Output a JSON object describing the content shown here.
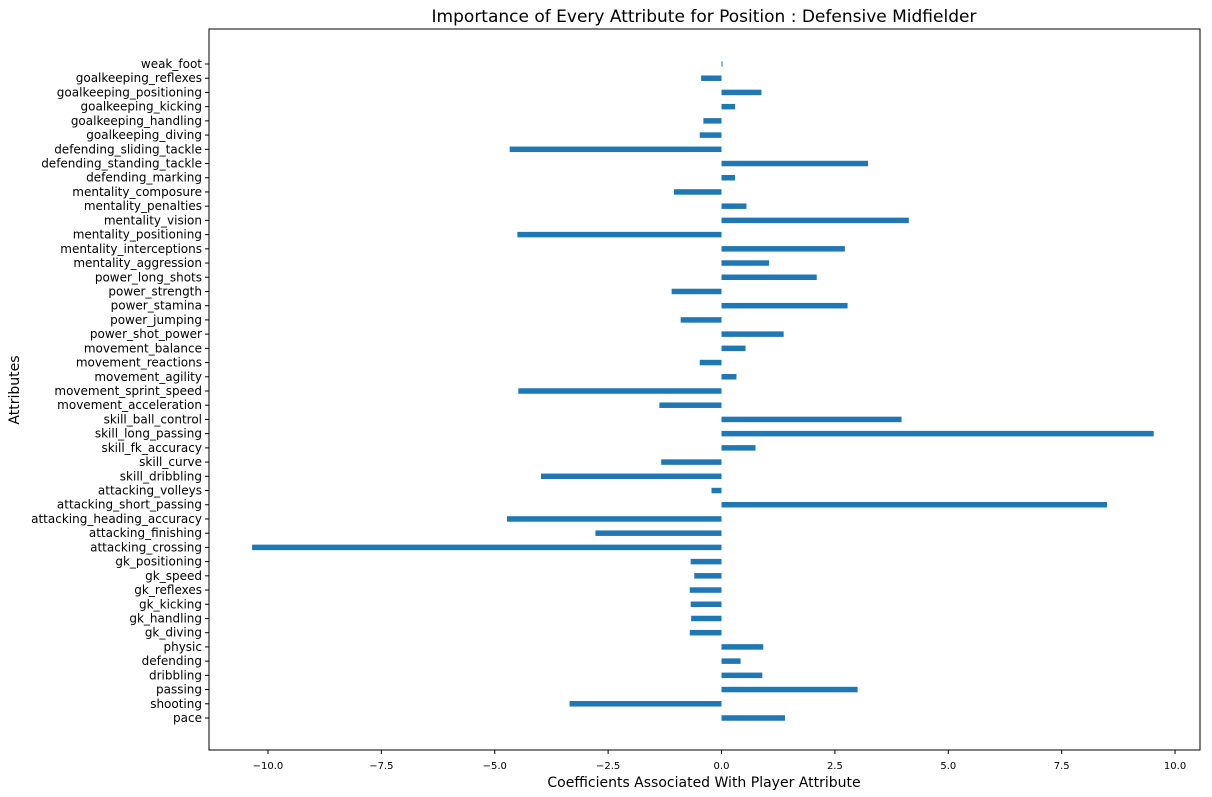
{
  "chart_data": {
    "type": "bar",
    "orientation": "horizontal",
    "title": "Importance of Every Attribute for Position : Defensive Midfielder",
    "xlabel": "Coefficients Associated With Player Attribute",
    "ylabel": "Attributes",
    "xlim": [
      -11.3,
      10.55
    ],
    "xticks": [
      -10.0,
      -7.5,
      -5.0,
      -2.5,
      0.0,
      2.5,
      5.0,
      7.5,
      10.0
    ],
    "xtick_labels": [
      "−10.0",
      "−7.5",
      "−5.0",
      "−2.5",
      "0.0",
      "2.5",
      "5.0",
      "7.5",
      "10.0"
    ],
    "grid": false,
    "bar_color": "#1f77b4",
    "categories": [
      "pace",
      "shooting",
      "passing",
      "dribbling",
      "defending",
      "physic",
      "gk_diving",
      "gk_handling",
      "gk_kicking",
      "gk_reflexes",
      "gk_speed",
      "gk_positioning",
      "attacking_crossing",
      "attacking_finishing",
      "attacking_heading_accuracy",
      "attacking_short_passing",
      "attacking_volleys",
      "skill_dribbling",
      "skill_curve",
      "skill_fk_accuracy",
      "skill_long_passing",
      "skill_ball_control",
      "movement_acceleration",
      "movement_sprint_speed",
      "movement_agility",
      "movement_reactions",
      "movement_balance",
      "power_shot_power",
      "power_jumping",
      "power_stamina",
      "power_strength",
      "power_long_shots",
      "mentality_aggression",
      "mentality_interceptions",
      "mentality_positioning",
      "mentality_vision",
      "mentality_penalties",
      "mentality_composure",
      "defending_marking",
      "defending_standing_tackle",
      "defending_sliding_tackle",
      "goalkeeping_diving",
      "goalkeeping_handling",
      "goalkeeping_kicking",
      "goalkeeping_positioning",
      "goalkeeping_reflexes",
      "weak_foot"
    ],
    "values": [
      1.4,
      -3.35,
      3.0,
      0.9,
      0.42,
      0.92,
      -0.7,
      -0.67,
      -0.68,
      -0.7,
      -0.6,
      -0.68,
      -10.35,
      -2.78,
      -4.73,
      8.5,
      -0.22,
      -3.98,
      -1.33,
      0.75,
      9.53,
      3.97,
      -1.37,
      -4.48,
      0.33,
      -0.48,
      0.53,
      1.37,
      -0.9,
      2.78,
      -1.1,
      2.1,
      1.05,
      2.72,
      -4.5,
      4.13,
      0.55,
      -1.05,
      0.3,
      3.23,
      -4.67,
      -0.48,
      -0.4,
      0.3,
      0.88,
      -0.45,
      0.02
    ]
  }
}
